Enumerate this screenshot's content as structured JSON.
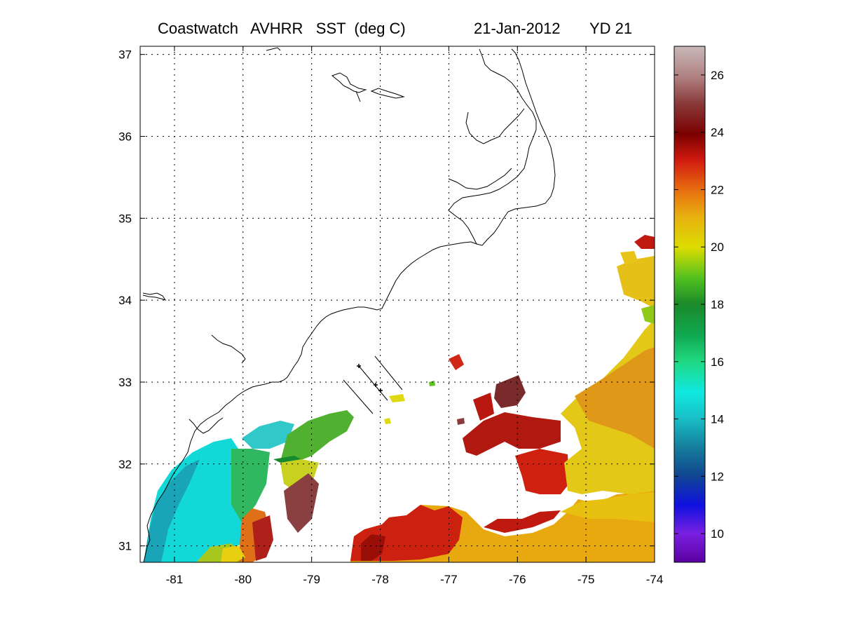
{
  "title": {
    "product": "Coastwatch   AVHRR   SST  (deg C)",
    "date": "21-Jan-2012",
    "yearday": "YD 21"
  },
  "map": {
    "lon_range": [
      -81.5,
      -74
    ],
    "lat_range": [
      30.8,
      37.1
    ],
    "x_ticks": [
      "-81",
      "-80",
      "-79",
      "-78",
      "-77",
      "-76",
      "-75",
      "-74"
    ],
    "y_ticks": [
      "31",
      "32",
      "33",
      "34",
      "35",
      "36",
      "37"
    ],
    "grid": "dotted"
  },
  "colorbar": {
    "range": [
      9,
      27
    ],
    "ticks": [
      "10",
      "12",
      "14",
      "16",
      "18",
      "20",
      "22",
      "24",
      "26"
    ],
    "colors": {
      "9": "#5a00a0",
      "10": "#7a20e0",
      "11": "#1010e0",
      "12": "#104890",
      "13": "#157a9a",
      "14": "#18c0c8",
      "15": "#10e8e0",
      "16": "#20d880",
      "17": "#10a850",
      "18": "#1a8a2a",
      "19": "#50c020",
      "20": "#dcdc00",
      "21": "#e8b010",
      "22": "#e87010",
      "23": "#d01a10",
      "24": "#7a0000",
      "25": "#8a3a3a",
      "26": "#b08080",
      "27": "#c8b8b8"
    }
  }
}
